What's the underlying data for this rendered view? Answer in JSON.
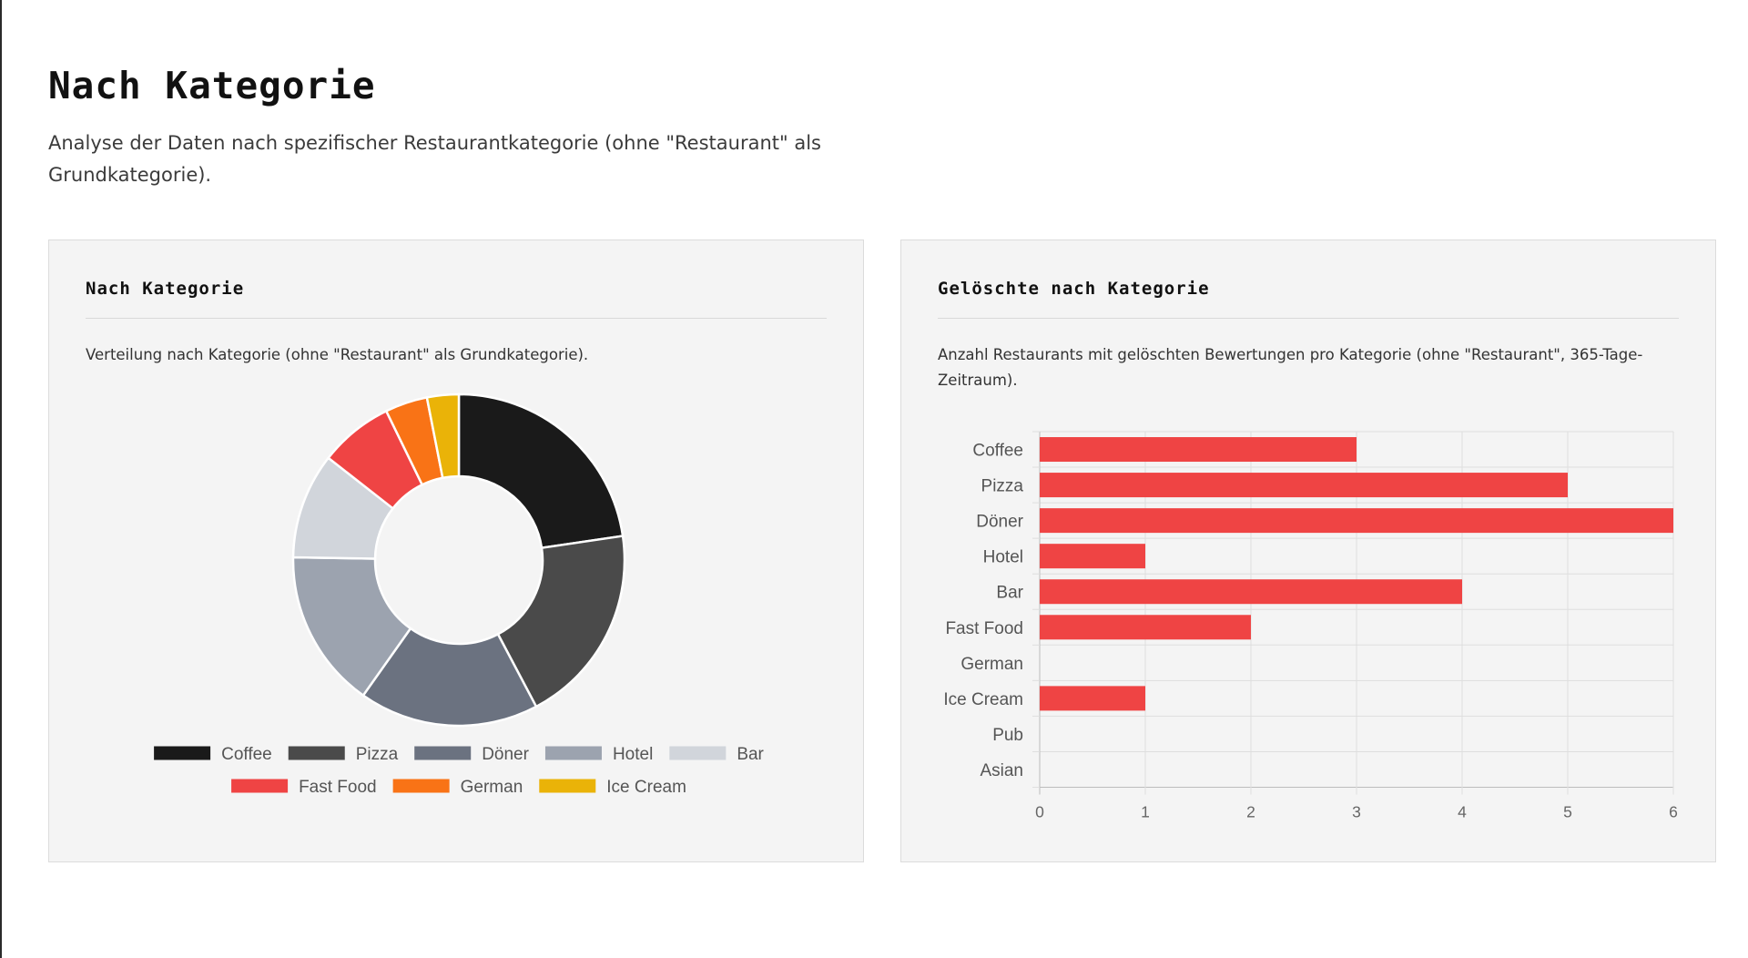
{
  "header": {
    "title": "Nach Kategorie",
    "subtitle": "Analyse der Daten nach spezifischer Restaurantkategorie (ohne \"Restaurant\" als Grundkategorie)."
  },
  "cards": [
    {
      "title": "Nach Kategorie",
      "description": "Verteilung nach Kategorie (ohne \"Restaurant\" als Grundkategorie)."
    },
    {
      "title": "Gelöschte nach Kategorie",
      "description": "Anzahl Restaurants mit gelöschten Bewertungen pro Kategorie (ohne \"Restaurant\", 365-Tage-Zeitraum)."
    }
  ],
  "chart_data": [
    {
      "type": "pie",
      "variant": "doughnut",
      "title": "",
      "categories": [
        "Coffee",
        "Pizza",
        "Döner",
        "Hotel",
        "Bar",
        "Fast Food",
        "German",
        "Ice Cream"
      ],
      "values": [
        22,
        19,
        17,
        15,
        10,
        7,
        4,
        3
      ],
      "colors": [
        "#1a1a1a",
        "#4a4a4a",
        "#6b7280",
        "#9ca3af",
        "#d1d5db",
        "#ef4444",
        "#f97316",
        "#eab308"
      ],
      "legend": "bottom"
    },
    {
      "type": "bar",
      "orientation": "horizontal",
      "title": "",
      "categories": [
        "Coffee",
        "Pizza",
        "Döner",
        "Hotel",
        "Bar",
        "Fast Food",
        "German",
        "Ice Cream",
        "Pub",
        "Asian"
      ],
      "values": [
        3,
        5,
        6,
        1,
        4,
        2,
        0,
        1,
        0,
        0
      ],
      "xlim": [
        0,
        6
      ],
      "xticks": [
        0,
        1,
        2,
        3,
        4,
        5,
        6
      ],
      "color": "#ef4444",
      "grid": true,
      "xlabel": "",
      "ylabel": ""
    }
  ]
}
